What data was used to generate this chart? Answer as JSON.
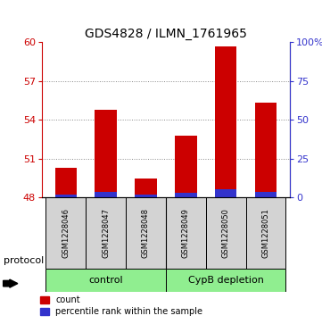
{
  "title": "GDS4828 / ILMN_1761965",
  "samples": [
    "GSM1228046",
    "GSM1228047",
    "GSM1228048",
    "GSM1228049",
    "GSM1228050",
    "GSM1228051"
  ],
  "count_values": [
    50.3,
    54.75,
    49.5,
    52.8,
    59.7,
    55.3
  ],
  "percentile_values": [
    1.8,
    3.5,
    2.2,
    3.0,
    5.5,
    3.5
  ],
  "base_value": 48,
  "ylim_left": [
    48,
    60
  ],
  "ylim_right": [
    0,
    100
  ],
  "yticks_left": [
    48,
    51,
    54,
    57,
    60
  ],
  "yticks_right": [
    0,
    25,
    50,
    75,
    100
  ],
  "ytick_labels_right": [
    "0",
    "25",
    "50",
    "75",
    "100%"
  ],
  "bar_color_red": "#cc0000",
  "bar_color_blue": "#3333cc",
  "group_box_facecolor": "#d3d3d3",
  "group_facecolor": "#90ee90",
  "legend_red_label": "count",
  "legend_blue_label": "percentile rank within the sample",
  "protocol_label": "protocol",
  "dotted_line_color": "#888888",
  "title_fontsize": 10,
  "tick_fontsize": 8,
  "bar_width": 0.55
}
